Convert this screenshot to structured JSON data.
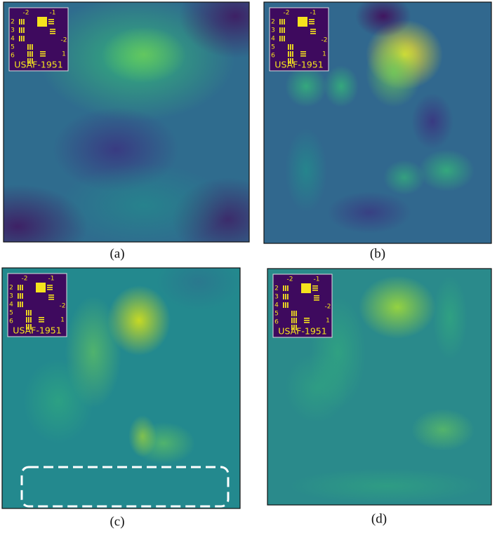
{
  "inset": {
    "top": [
      "-2",
      "-1"
    ],
    "left": [
      "2",
      "3",
      "4",
      "5",
      "6"
    ],
    "right": [
      "-2",
      "1"
    ],
    "name": "USAF-1951"
  },
  "panels": [
    {
      "label": "(a)"
    },
    {
      "label": "(b)"
    },
    {
      "label": "(c)"
    },
    {
      "label": "(d)"
    }
  ]
}
